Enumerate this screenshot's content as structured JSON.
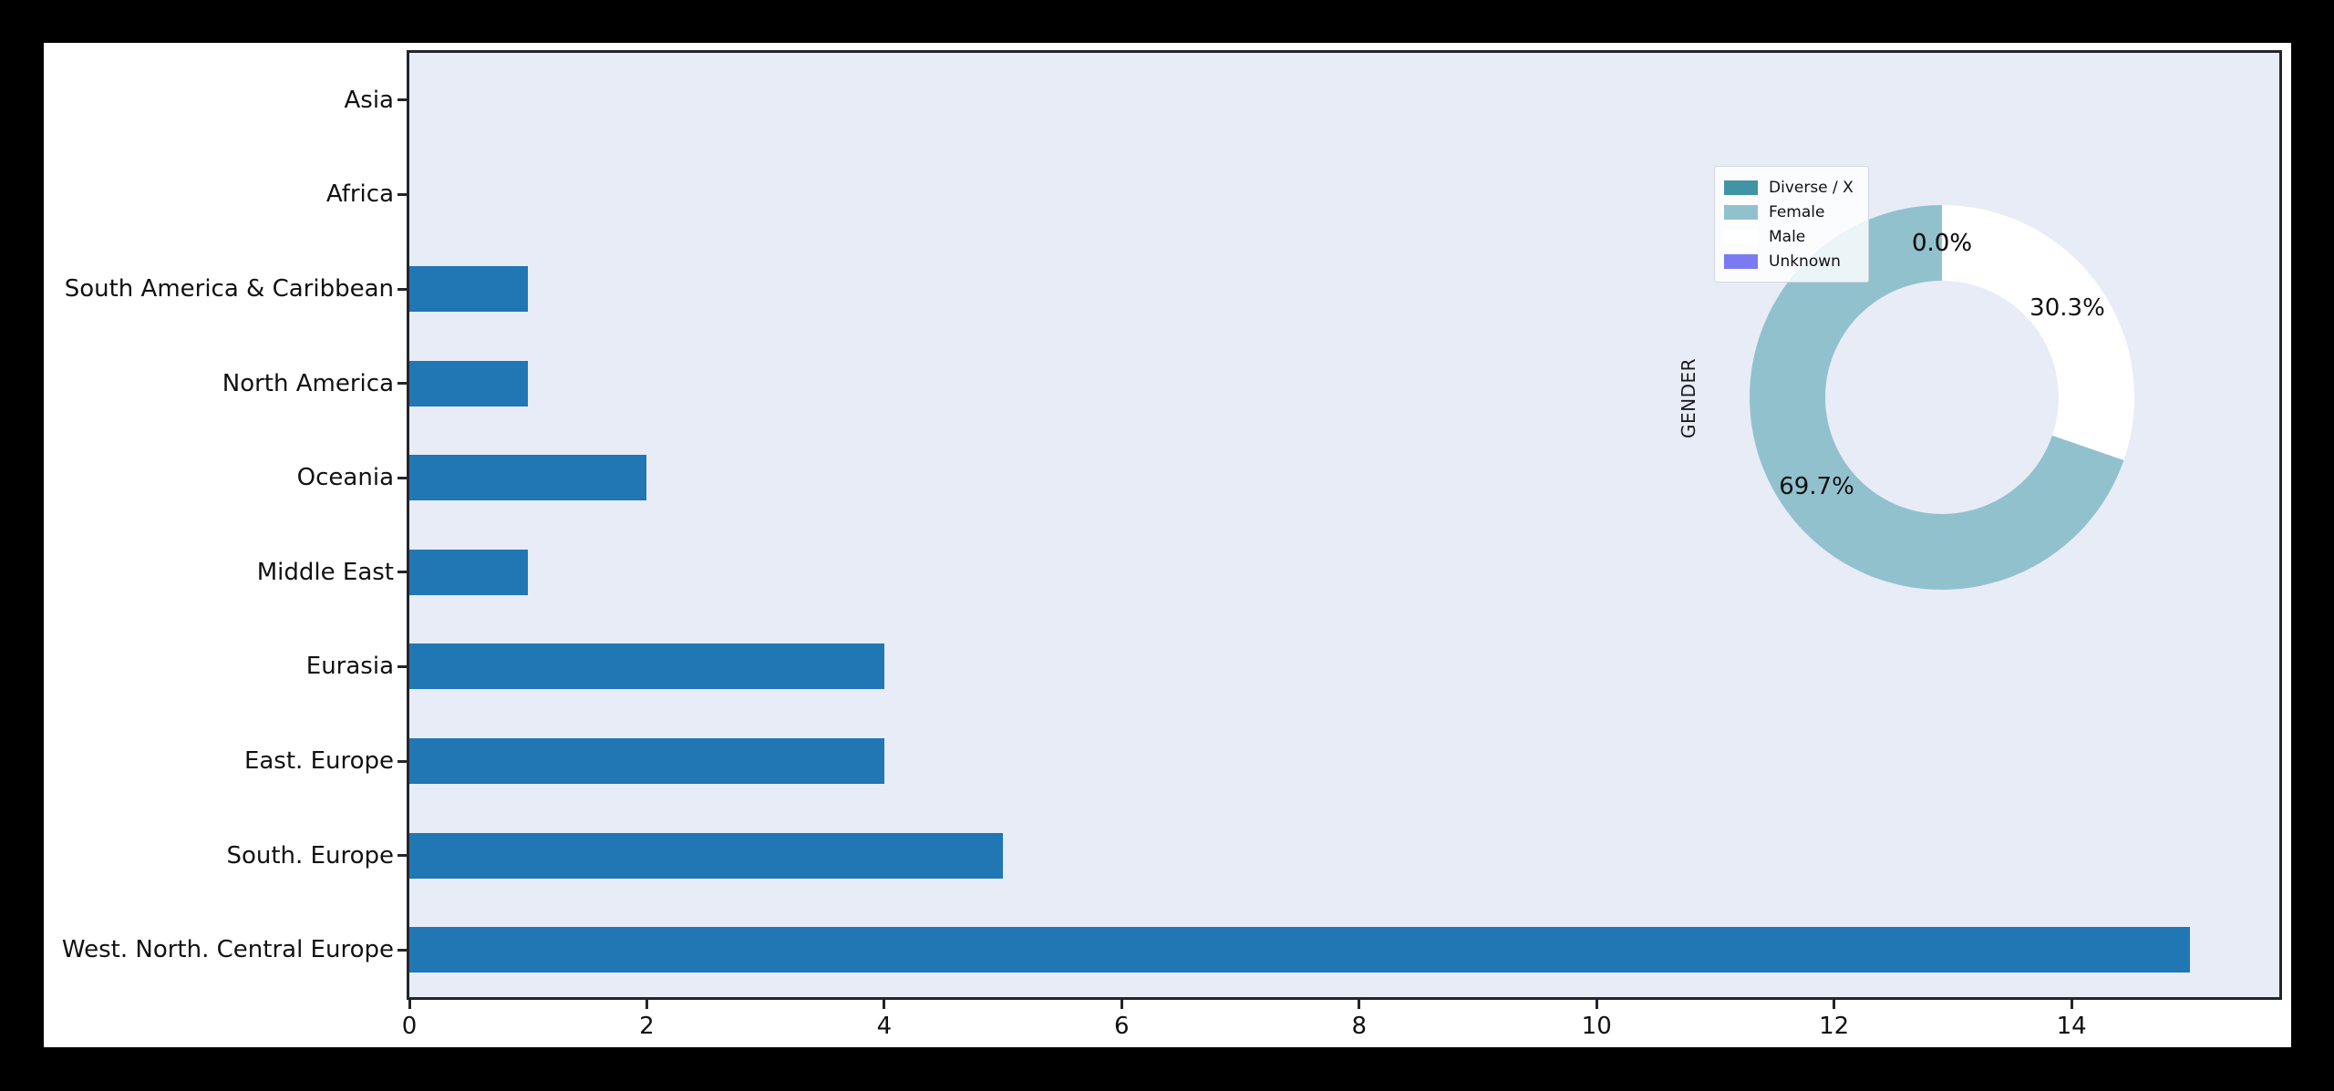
{
  "window": {
    "background_color": "#000000",
    "figure_background_color": "#ffffff",
    "plot_background_color": "#e8ecf6",
    "axes_border_color": "#24242c",
    "text_color": "#111111"
  },
  "chart_data": [
    {
      "type": "bar",
      "orientation": "horizontal",
      "title": "",
      "xlabel": "",
      "ylabel": "",
      "categories": [
        "Asia",
        "Africa",
        "South America & Caribbean",
        "North America",
        "Oceania",
        "Middle East",
        "Eurasia",
        "East. Europe",
        "South. Europe",
        "West. North. Central Europe"
      ],
      "values": [
        0,
        0,
        1,
        1,
        2,
        1,
        4,
        4,
        5,
        15
      ],
      "bar_color": "#2077b4",
      "xticks": [
        0,
        2,
        4,
        6,
        8,
        10,
        12,
        14
      ],
      "xlim": [
        0,
        15.75
      ],
      "grid": false,
      "legend_position": "none"
    },
    {
      "type": "pie",
      "donut": true,
      "ylabel": "GENDER",
      "start_angle": 90,
      "counterclockwise": true,
      "slices": [
        {
          "label": "Diverse / X",
          "value": 0.0,
          "pct_label": "0.0%",
          "color": "#4194a4"
        },
        {
          "label": "Female",
          "value": 69.7,
          "pct_label": "69.7%",
          "color": "#92c1ce"
        },
        {
          "label": "Male",
          "value": 30.3,
          "pct_label": "30.3%",
          "color": "#ffffff"
        },
        {
          "label": "Unknown",
          "value": 0.0,
          "pct_label": "0.0%",
          "color": "#7b7af0"
        }
      ],
      "legend_position": "upper left of inset"
    }
  ]
}
